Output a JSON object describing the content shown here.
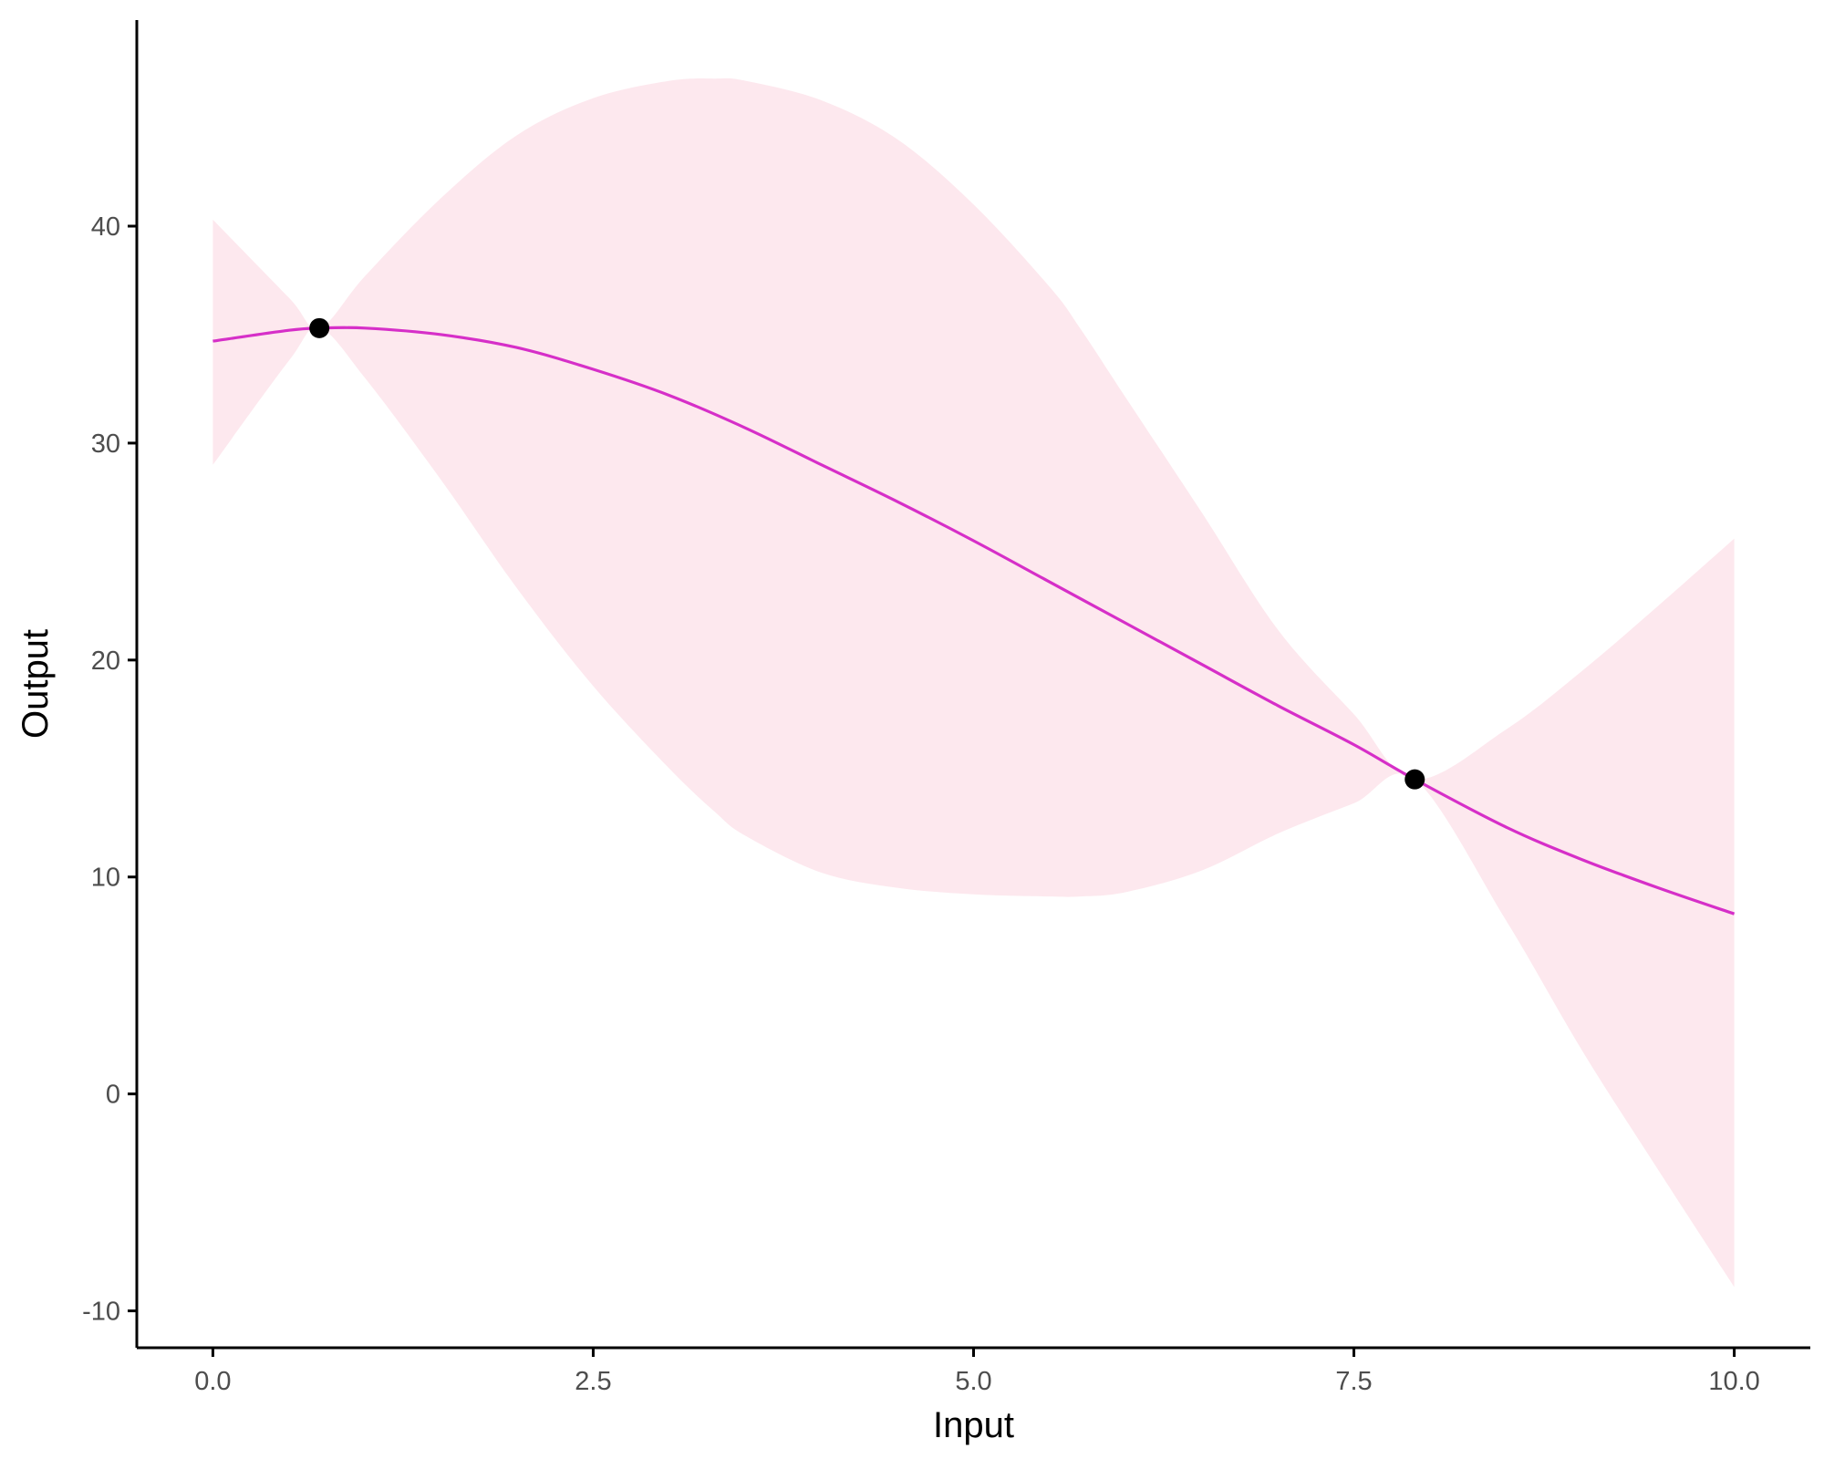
{
  "chart_data": {
    "type": "line",
    "xlabel": "Input",
    "ylabel": "Output",
    "xlim": [
      -0.5,
      10.5
    ],
    "ylim": [
      -11.7,
      49.5
    ],
    "x_ticks": [
      0.0,
      2.5,
      5.0,
      7.5,
      10.0
    ],
    "x_tick_labels": [
      "0.0",
      "2.5",
      "5.0",
      "7.5",
      "10.0"
    ],
    "y_ticks": [
      -10,
      0,
      10,
      20,
      30,
      40
    ],
    "y_tick_labels": [
      "-10",
      "0",
      "10",
      "20",
      "30",
      "40"
    ],
    "grid": false,
    "legend": "none",
    "colors": {
      "line": "#d62fc8",
      "band": "#fde8ee",
      "points": "#000000",
      "axis": "#000000"
    },
    "series": [
      {
        "kind": "mean",
        "x": [
          0,
          0.5,
          0.7,
          1,
          1.5,
          2,
          2.5,
          3,
          3.5,
          4,
          4.5,
          5,
          5.5,
          6,
          6.5,
          7,
          7.5,
          7.9,
          8.5,
          9,
          9.5,
          10
        ],
        "y": [
          34.7,
          35.2,
          35.3,
          35.3,
          35.0,
          34.4,
          33.4,
          32.2,
          30.7,
          29.0,
          27.3,
          25.5,
          23.6,
          21.7,
          19.8,
          17.9,
          16.1,
          14.5,
          12.3,
          10.8,
          9.5,
          8.3
        ]
      },
      {
        "kind": "band",
        "x": [
          0,
          0.5,
          0.7,
          1,
          1.5,
          2,
          2.5,
          3,
          3.3,
          3.5,
          4,
          4.5,
          5,
          5.5,
          5.7,
          6,
          6.5,
          7,
          7.5,
          7.9,
          8.5,
          9,
          9.5,
          10
        ],
        "upper": [
          40.3,
          36.7,
          35.3,
          37.7,
          41.3,
          44.2,
          45.9,
          46.7,
          46.8,
          46.7,
          45.8,
          44.0,
          41.0,
          37.2,
          35.3,
          32.1,
          26.8,
          21.4,
          17.5,
          14.5,
          16.8,
          19.5,
          22.5,
          25.6
        ],
        "lower": [
          29.0,
          33.8,
          35.3,
          33.0,
          28.3,
          23.3,
          18.8,
          15.0,
          13.0,
          11.9,
          10.2,
          9.5,
          9.2,
          9.1,
          9.1,
          9.3,
          10.3,
          12.0,
          13.4,
          14.5,
          8.0,
          2.0,
          -3.5,
          -8.9
        ]
      }
    ],
    "points": [
      {
        "x": 0.7,
        "y": 35.3
      },
      {
        "x": 7.9,
        "y": 14.5
      }
    ]
  }
}
